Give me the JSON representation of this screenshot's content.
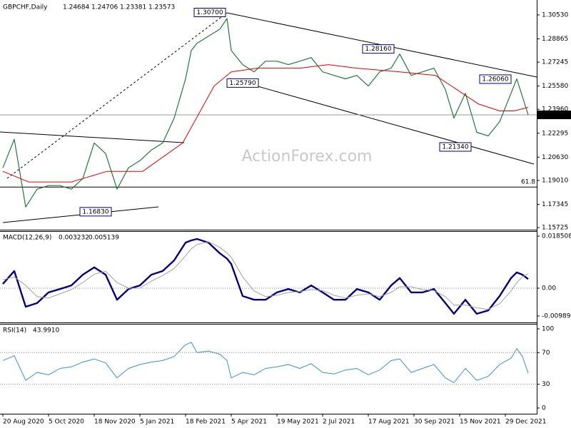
{
  "chart_data": {
    "type": "line",
    "header": {
      "symbol": "GBPCHF,Daily",
      "ohlc": [
        1.24684,
        1.24706,
        1.23381,
        1.23573
      ]
    },
    "watermark": "ActionForex.com",
    "x": [
      0,
      8,
      16,
      24,
      32,
      40,
      48,
      56,
      64,
      72,
      80,
      88,
      96,
      104,
      112,
      120,
      128,
      132,
      136,
      144,
      152,
      157,
      160,
      168,
      176,
      184,
      192,
      200,
      208,
      216,
      224,
      232,
      240,
      248,
      256,
      264,
      272,
      278,
      286,
      294,
      302,
      310,
      316,
      324,
      332,
      340,
      348,
      356,
      360,
      364,
      368
    ],
    "xlim": [
      -2,
      374
    ],
    "xticks": [
      {
        "value": 0,
        "label": "20 Aug 2020"
      },
      {
        "value": 32,
        "label": "5 Oct 2020"
      },
      {
        "value": 64,
        "label": "18 Nov 2020"
      },
      {
        "value": 96,
        "label": "5 Jan 2021"
      },
      {
        "value": 128,
        "label": "18 Feb 2021"
      },
      {
        "value": 160,
        "label": "5 Apr 2021"
      },
      {
        "value": 192,
        "label": "19 May 2021"
      },
      {
        "value": 224,
        "label": "2 Jul 2021"
      },
      {
        "value": 256,
        "label": "17 Aug 2021"
      },
      {
        "value": 288,
        "label": "30 Sep 2021"
      },
      {
        "value": 320,
        "label": "15 Nov 2021"
      },
      {
        "value": 352,
        "label": "29 Dec 2021"
      }
    ],
    "panels": [
      {
        "ylim": [
          1.1563,
          1.3142
        ],
        "yticks": [
          {
            "value": 1.3053,
            "label": "1.30530"
          },
          {
            "value": 1.28865,
            "label": "1.28865"
          },
          {
            "value": 1.27245,
            "label": "1.27245"
          },
          {
            "value": 1.2558,
            "label": "1.25580"
          },
          {
            "value": 1.2396,
            "label": "1.23960"
          },
          {
            "value": 1.22295,
            "label": "1.22295"
          },
          {
            "value": 1.2063,
            "label": "1.20630"
          },
          {
            "value": 1.1901,
            "label": "1.19010"
          },
          {
            "value": 1.17345,
            "label": "1.17345"
          },
          {
            "value": 1.15725,
            "label": "1.15725"
          }
        ],
        "series": [
          {
            "color": "#1f7a3a",
            "width": 1.2,
            "values": [
              1.1989,
              1.2187,
              1.1716,
              1.184,
              1.1865,
              1.1865,
              1.184,
              1.1914,
              1.2162,
              1.2088,
              1.184,
              1.1989,
              1.2038,
              1.2112,
              1.2162,
              1.2335,
              1.2608,
              1.2806,
              1.2855,
              1.2905,
              1.2954,
              1.3028,
              1.2806,
              1.2707,
              1.2657,
              1.2731,
              1.2731,
              1.2707,
              1.2731,
              1.2756,
              1.2657,
              1.2632,
              1.2608,
              1.2632,
              1.2558,
              1.2657,
              1.2682,
              1.2781,
              1.2632,
              1.2657,
              1.2682,
              1.2533,
              1.2335,
              1.2508,
              1.2236,
              1.2211,
              1.231,
              1.2508,
              1.2608,
              1.2484,
              1.23573
            ]
          },
          {
            "color": "#e00000",
            "width": 1,
            "x": [
              0,
              18,
              48,
              73,
              98,
              126,
              148,
              160,
              178,
              208,
              228,
              248,
              278,
              303,
              318,
              333,
              348,
              358,
              368
            ],
            "values": [
              1.1964,
              1.189,
              1.189,
              1.1964,
              1.1964,
              1.2162,
              1.2558,
              1.2657,
              1.2682,
              1.2682,
              1.2707,
              1.2682,
              1.2657,
              1.2632,
              1.2533,
              1.2434,
              1.2385,
              1.2385,
              1.2409
            ]
          }
        ],
        "annotations": [
          {
            "label": "1.30700",
            "value": 1.307,
            "x": 156
          },
          {
            "label": "1.28160",
            "value": 1.2816,
            "x": 274
          },
          {
            "label": "1.25790",
            "value": 1.2579,
            "x": 179
          },
          {
            "label": "1.26060",
            "value": 1.2606,
            "x": 356
          },
          {
            "label": "1.21340",
            "value": 1.2134,
            "x": 328
          },
          {
            "label": "1.16830",
            "value": 1.1683,
            "x": 76
          }
        ],
        "fib_level": {
          "label": "61.8",
          "value": 1.1855
        }
      },
      {
        "title": "MACD(12,26,9)",
        "readings": [
          0.003232,
          0.005139
        ],
        "ylim": [
          -0.01217,
          0.02003
        ],
        "yticks": [
          0.018508,
          {
            "value": 0,
            "label": "0.00"
          },
          -0.009891
        ],
        "levels": [
          0
        ],
        "series": [
          {
            "color": "#000080",
            "width": 2.4,
            "values": [
              0.0015,
              0.0061,
              -0.0066,
              -0.0053,
              -0.0015,
              -0.0003,
              0.001,
              0.0048,
              0.0074,
              0.0048,
              -0.0041,
              -0.0003,
              0.001,
              0.0048,
              0.0061,
              0.0099,
              0.0162,
              0.017,
              0.0175,
              0.0162,
              0.0124,
              0.0105,
              0.0086,
              -0.0028,
              -0.0041,
              -0.0041,
              -0.0015,
              -0.0003,
              -0.0015,
              0.001,
              -0.0015,
              -0.0041,
              -0.0041,
              -0.0003,
              -0.0015,
              -0.0041,
              0.001,
              0.0036,
              -0.0015,
              -0.0015,
              -0.0003,
              -0.0053,
              -0.0091,
              -0.0041,
              -0.0091,
              -0.0079,
              -0.0028,
              0.0036,
              0.0056,
              0.0048,
              0.003232
            ]
          },
          {
            "color": "#a0a0a0",
            "width": 1,
            "values": [
              0.003,
              0.004,
              0.001,
              -0.003,
              -0.0035,
              -0.002,
              -0.0005,
              0.002,
              0.005,
              0.006,
              0.002,
              0,
              0,
              0.0025,
              0.0045,
              0.007,
              0.0115,
              0.014,
              0.0155,
              0.0165,
              0.0145,
              0.0125,
              0.011,
              0.004,
              -0.001,
              -0.003,
              -0.0025,
              -0.0015,
              -0.0012,
              -0.0005,
              -0.0008,
              -0.0025,
              -0.0035,
              -0.0025,
              -0.002,
              -0.003,
              -0.0015,
              0.0005,
              0.0005,
              -0.0005,
              -0.0008,
              -0.003,
              -0.006,
              -0.006,
              -0.007,
              -0.0075,
              -0.0055,
              -0.001,
              0.002,
              0.004,
              0.005139
            ]
          }
        ]
      },
      {
        "title": "RSI(14)",
        "readings": [
          {
            "value": 43.991,
            "label": "43.9910"
          }
        ],
        "ylim": [
          -7.2,
          105.4
        ],
        "yticks": [
          100,
          70,
          30,
          0
        ],
        "levels": [
          70,
          30
        ],
        "series": [
          {
            "color": "#3a8fd0",
            "width": 1,
            "values": [
              60,
              66,
              35,
              45,
              42,
              50,
              52,
              58,
              62,
              57,
              38,
              50,
              55,
              58,
              60,
              65,
              80,
              83,
              70,
              72,
              68,
              60,
              38,
              45,
              42,
              50,
              52,
              55,
              50,
              56,
              45,
              43,
              48,
              50,
              42,
              48,
              60,
              62,
              45,
              50,
              55,
              38,
              32,
              50,
              35,
              40,
              55,
              63,
              75,
              65,
              43.991
            ]
          }
        ]
      }
    ]
  }
}
